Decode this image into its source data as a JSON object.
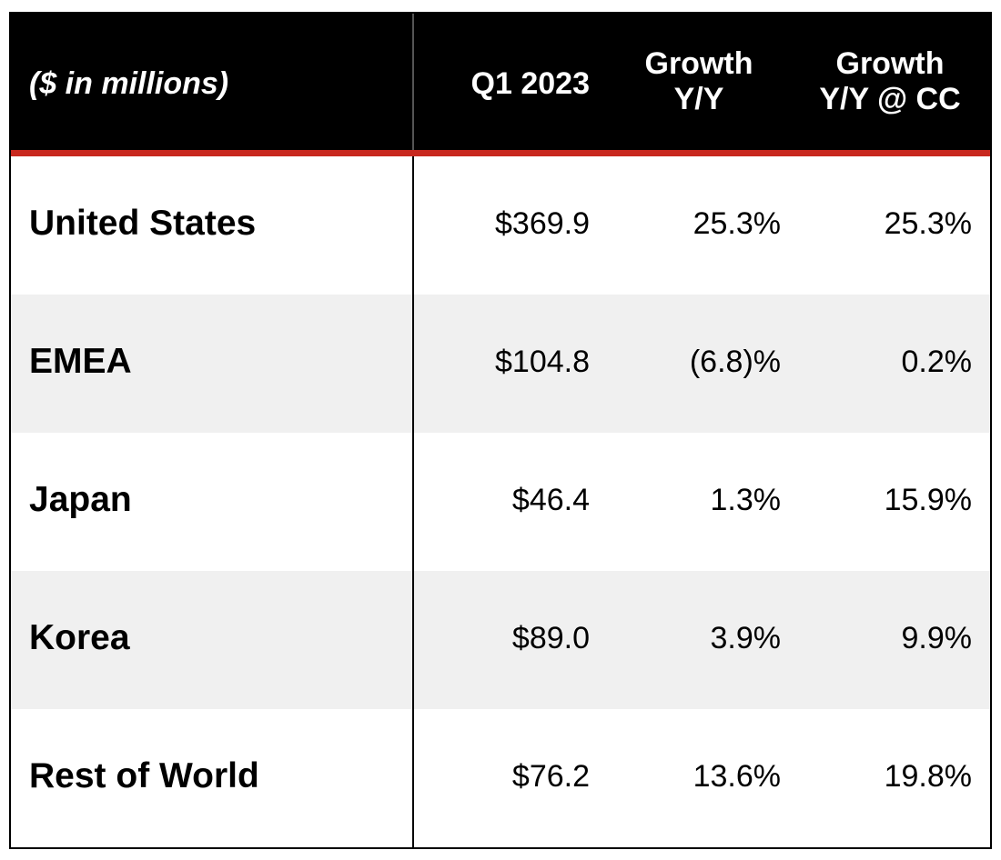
{
  "table": {
    "header": [
      "($ in millions)",
      "Q1 2023",
      "Growth\nY/Y",
      "Growth\nY/Y @ CC"
    ],
    "rows": [
      [
        "United States",
        "$369.9",
        "25.3%",
        "25.3%"
      ],
      [
        "EMEA",
        "$104.8",
        "(6.8)%",
        "0.2%"
      ],
      [
        "Japan",
        "$46.4",
        "1.3%",
        "15.9%"
      ],
      [
        "Korea",
        "$89.0",
        "3.9%",
        "9.9%"
      ],
      [
        "Rest of World",
        "$76.2",
        "13.6%",
        "19.8%"
      ]
    ]
  }
}
